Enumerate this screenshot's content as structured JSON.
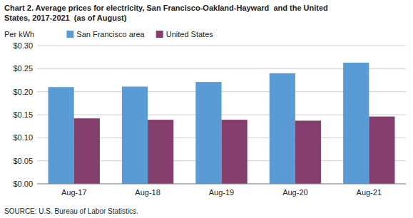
{
  "chart_data": {
    "type": "bar",
    "title": "Chart 2. Average prices for electricity, San Francisco-Oakland-Hayward  and the United",
    "subtitle": "States, 2017-2021  (as of August)",
    "ylabel": "Per kWh",
    "source": "SOURCE: U.S. Bureau of Labor Statistics.",
    "categories": [
      "Aug-17",
      "Aug-18",
      "Aug-19",
      "Aug-20",
      "Aug-21"
    ],
    "series": [
      {
        "name": "San Francisco area",
        "color": "#5B9BD5",
        "values": [
          0.21,
          0.211,
          0.221,
          0.24,
          0.263
        ]
      },
      {
        "name": "United States",
        "color": "#833E6C",
        "values": [
          0.142,
          0.139,
          0.139,
          0.137,
          0.146
        ]
      }
    ],
    "ylim": [
      0.0,
      0.3
    ],
    "yticks": [
      {
        "value": 0.0,
        "label": "$0.00"
      },
      {
        "value": 0.05,
        "label": "$0.05"
      },
      {
        "value": 0.1,
        "label": "$0.10"
      },
      {
        "value": 0.15,
        "label": "$0.15"
      },
      {
        "value": 0.2,
        "label": "$0.20"
      },
      {
        "value": 0.25,
        "label": "$0.25"
      },
      {
        "value": 0.3,
        "label": "$0.30"
      }
    ],
    "grid": true,
    "legend": "upper left"
  }
}
